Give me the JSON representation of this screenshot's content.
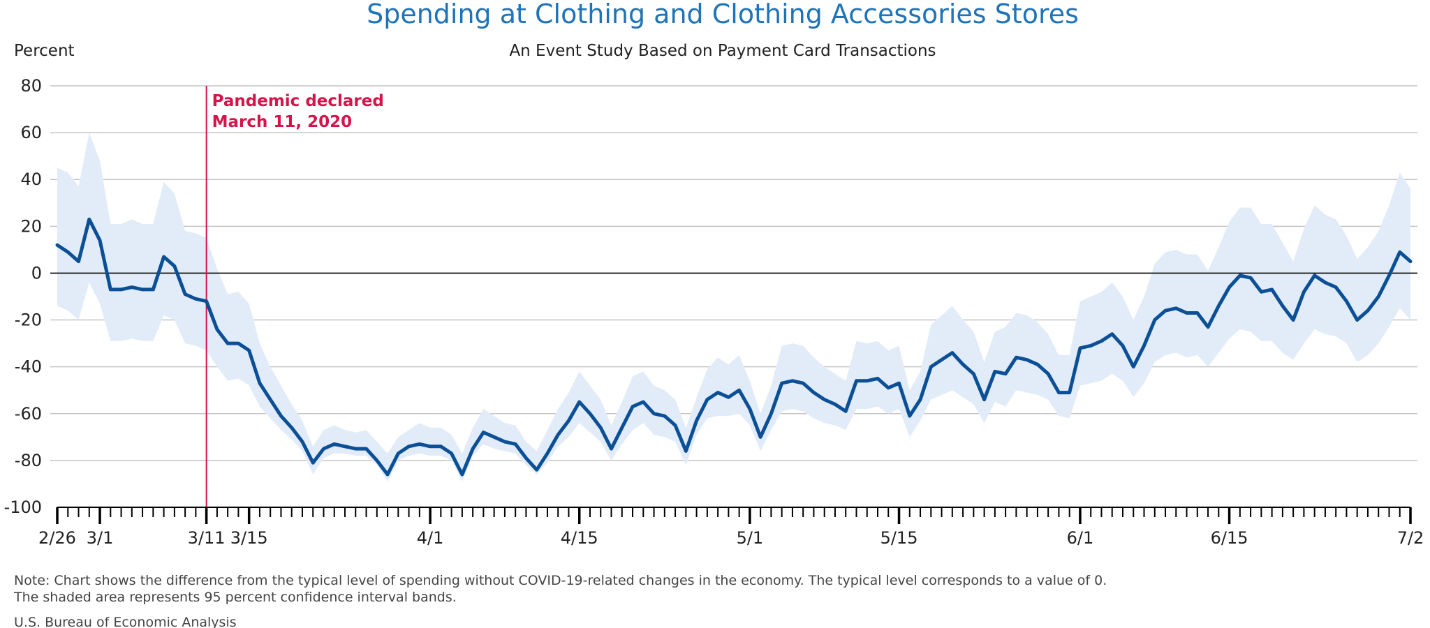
{
  "chart_data": {
    "type": "line",
    "title": "Spending at Clothing and Clothing Accessories Stores",
    "subtitle": "An Event Study Based on Payment Card Transactions",
    "ylabel": "Percent",
    "xlabel": "",
    "ylim": [
      -100,
      80
    ],
    "yticks": [
      80,
      60,
      40,
      20,
      0,
      -20,
      -40,
      -60,
      -80,
      -100
    ],
    "x_start": "2/26",
    "x_end": "7/2",
    "xtick_labels": [
      {
        "label": "2/26",
        "day": 0
      },
      {
        "label": "3/1",
        "day": 4
      },
      {
        "label": "3/11",
        "day": 14
      },
      {
        "label": "3/15",
        "day": 18
      },
      {
        "label": "4/1",
        "day": 35
      },
      {
        "label": "4/15",
        "day": 49
      },
      {
        "label": "5/1",
        "day": 65
      },
      {
        "label": "5/15",
        "day": 79
      },
      {
        "label": "6/1",
        "day": 96
      },
      {
        "label": "6/15",
        "day": 110
      },
      {
        "label": "7/2",
        "day": 127
      }
    ],
    "grid": true,
    "annotation": {
      "lines": [
        "Pandemic declared",
        "March 11, 2020"
      ],
      "day": 14,
      "color": "#d4144a"
    },
    "colors": {
      "line": "#0b4f96",
      "band": "#e2ecf8",
      "grid": "#c4c4c4",
      "zero": "#000000"
    },
    "series": [
      {
        "kind": "point_estimate",
        "values": [
          12,
          9,
          5,
          23,
          14,
          -7,
          -7,
          -6,
          -7,
          -7,
          7,
          3,
          -9,
          -11,
          -12,
          -24,
          -30,
          -30,
          -33,
          -47,
          -54,
          -61,
          -66,
          -72,
          -81,
          -75,
          -73,
          -74,
          -75,
          -75,
          -80,
          -86,
          -77,
          -74,
          -73,
          -74,
          -74,
          -77,
          -86,
          -75,
          -68,
          -70,
          -72,
          -73,
          -79,
          -84,
          -77,
          -69,
          -63,
          -55,
          -60,
          -66,
          -75,
          -66,
          -57,
          -55,
          -60,
          -61,
          -65,
          -76,
          -63,
          -54,
          -51,
          -53,
          -50,
          -58,
          -70,
          -60,
          -47,
          -46,
          -47,
          -51,
          -54,
          -56,
          -59,
          -46,
          -46,
          -45,
          -49,
          -47,
          -61,
          -54,
          -40,
          -37,
          -34,
          -39,
          -43,
          -54,
          -42,
          -43,
          -36,
          -37,
          -39,
          -43,
          -51,
          -51,
          -32,
          -31,
          -29,
          -26,
          -31,
          -40,
          -31,
          -20,
          -16,
          -15,
          -17,
          -17,
          -23,
          -14,
          -6,
          -1,
          -2,
          -8,
          -7,
          -14,
          -20,
          -8,
          -1,
          -4,
          -6,
          -12,
          -20,
          -16,
          -10,
          -1,
          9,
          5
        ]
      },
      {
        "kind": "ci_upper",
        "values": [
          45,
          43,
          37,
          60,
          48,
          21,
          21,
          23,
          21,
          21,
          39,
          34,
          18,
          17,
          15,
          2,
          -9,
          -8,
          -13,
          -30,
          -40,
          -48,
          -56,
          -63,
          -74,
          -67,
          -65,
          -67,
          -68,
          -67,
          -72,
          -77,
          -70,
          -67,
          -64,
          -66,
          -66,
          -69,
          -77,
          -66,
          -58,
          -61,
          -64,
          -65,
          -72,
          -76,
          -67,
          -58,
          -51,
          -42,
          -48,
          -54,
          -65,
          -55,
          -44,
          -42,
          -48,
          -50,
          -54,
          -66,
          -53,
          -41,
          -36,
          -39,
          -35,
          -46,
          -60,
          -48,
          -31,
          -30,
          -31,
          -36,
          -40,
          -43,
          -46,
          -29,
          -30,
          -29,
          -33,
          -31,
          -50,
          -42,
          -22,
          -18,
          -14,
          -20,
          -25,
          -38,
          -25,
          -23,
          -17,
          -18,
          -21,
          -26,
          -35,
          -35,
          -12,
          -10,
          -8,
          -4,
          -10,
          -20,
          -10,
          4,
          9,
          10,
          8,
          8,
          1,
          11,
          22,
          28,
          28,
          21,
          21,
          13,
          5,
          19,
          29,
          25,
          23,
          16,
          6,
          11,
          18,
          29,
          43,
          36
        ]
      },
      {
        "kind": "ci_lower",
        "values": [
          -14,
          -16,
          -20,
          -4,
          -13,
          -29,
          -29,
          -28,
          -29,
          -29,
          -18,
          -20,
          -30,
          -31,
          -33,
          -40,
          -46,
          -45,
          -48,
          -57,
          -62,
          -67,
          -71,
          -76,
          -86,
          -79,
          -77,
          -77,
          -78,
          -78,
          -82,
          -89,
          -80,
          -78,
          -77,
          -78,
          -78,
          -80,
          -89,
          -78,
          -73,
          -75,
          -76,
          -77,
          -82,
          -86,
          -81,
          -74,
          -70,
          -64,
          -68,
          -72,
          -80,
          -73,
          -67,
          -64,
          -69,
          -70,
          -72,
          -82,
          -69,
          -62,
          -61,
          -61,
          -60,
          -65,
          -76,
          -67,
          -59,
          -58,
          -59,
          -62,
          -64,
          -65,
          -67,
          -58,
          -58,
          -57,
          -60,
          -58,
          -70,
          -63,
          -54,
          -52,
          -50,
          -53,
          -56,
          -64,
          -55,
          -57,
          -50,
          -51,
          -52,
          -54,
          -61,
          -62,
          -48,
          -47,
          -46,
          -43,
          -46,
          -53,
          -47,
          -38,
          -35,
          -34,
          -36,
          -35,
          -40,
          -34,
          -28,
          -24,
          -25,
          -29,
          -29,
          -34,
          -37,
          -30,
          -24,
          -26,
          -27,
          -30,
          -38,
          -35,
          -30,
          -23,
          -15,
          -20
        ]
      }
    ]
  },
  "note": {
    "line1": "Note: Chart shows the difference from the typical level of spending without COVID-19-related changes in the economy. The typical level corresponds to a value of 0.",
    "line2": "The shaded area represents 95 percent confidence interval bands."
  },
  "source": "U.S. Bureau of Economic Analysis"
}
